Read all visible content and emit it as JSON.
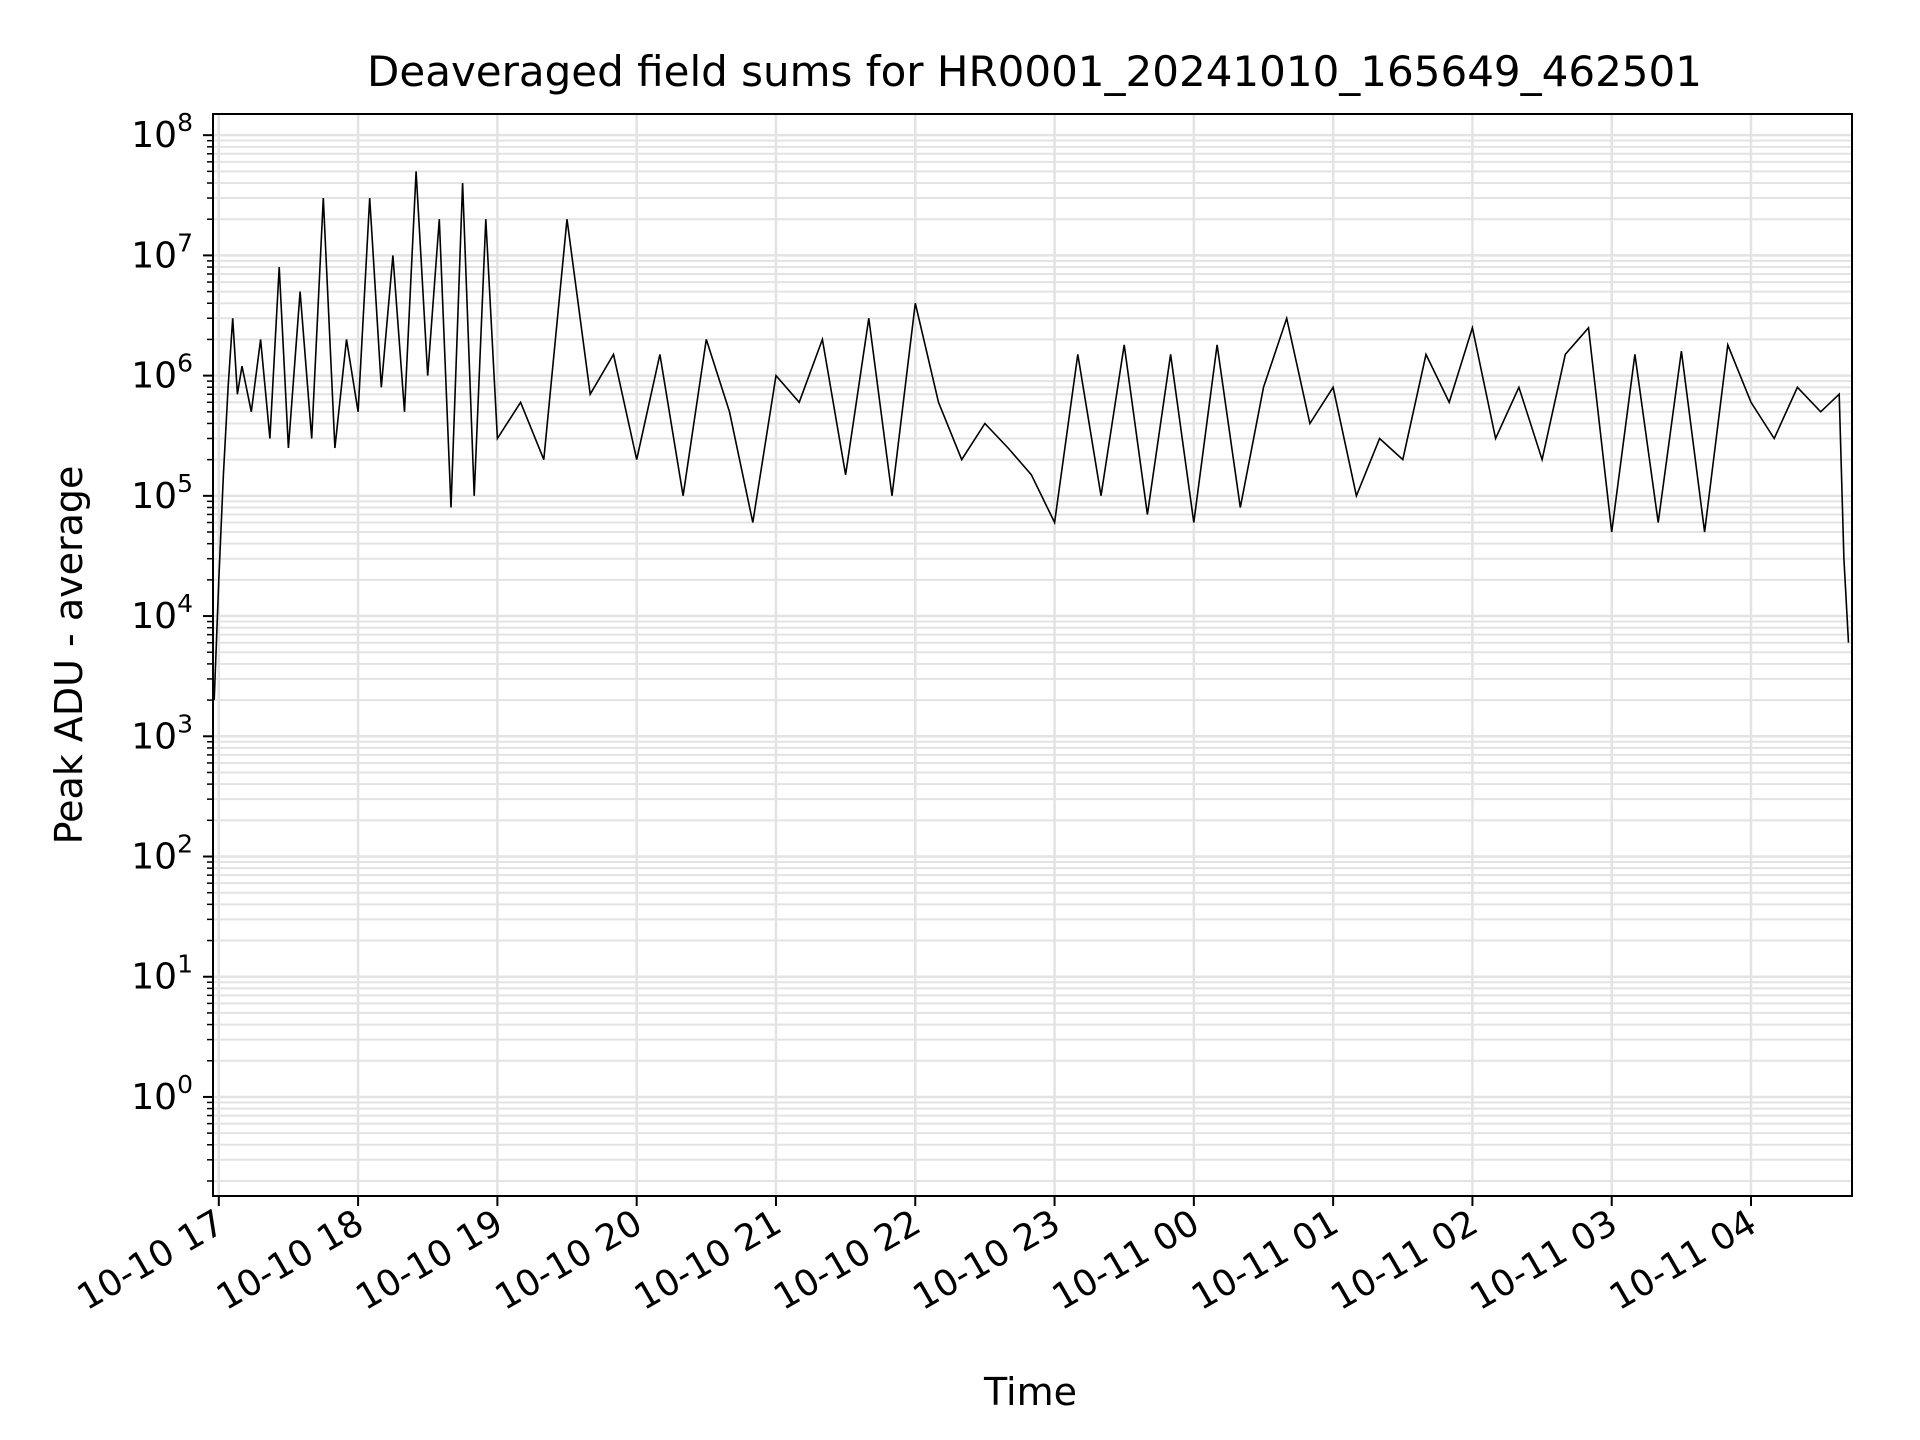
{
  "chart_data": {
    "type": "line",
    "title": "Deaveraged field sums for HR0001_20241010_165649_462501",
    "xlabel": "Time",
    "ylabel": "Peak ADU - average",
    "yscale": "log",
    "ylim": [
      0.15,
      150000000
    ],
    "xlim": [
      "2024-10-10 16:57:30",
      "2024-10-11 04:43:30"
    ],
    "x_tick_labels": [
      "10-10 17",
      "10-10 18",
      "10-10 19",
      "10-10 20",
      "10-10 21",
      "10-10 22",
      "10-10 23",
      "10-11 00",
      "10-11 01",
      "10-11 02",
      "10-11 03",
      "10-11 04"
    ],
    "x_tick_times": [
      "2024-10-10 17:00",
      "2024-10-10 18:00",
      "2024-10-10 19:00",
      "2024-10-10 20:00",
      "2024-10-10 21:00",
      "2024-10-10 22:00",
      "2024-10-10 23:00",
      "2024-10-11 00:00",
      "2024-10-11 01:00",
      "2024-10-11 02:00",
      "2024-10-11 03:00",
      "2024-10-11 04:00"
    ],
    "y_ticks": [
      {
        "value": 1,
        "base": "10",
        "exp": "0"
      },
      {
        "value": 10,
        "base": "10",
        "exp": "1"
      },
      {
        "value": 100,
        "base": "10",
        "exp": "2"
      },
      {
        "value": 1000,
        "base": "10",
        "exp": "3"
      },
      {
        "value": 10000,
        "base": "10",
        "exp": "4"
      },
      {
        "value": 100000,
        "base": "10",
        "exp": "5"
      },
      {
        "value": 1000000,
        "base": "10",
        "exp": "6"
      },
      {
        "value": 10000000,
        "base": "10",
        "exp": "7"
      },
      {
        "value": 100000000,
        "base": "10",
        "exp": "8"
      }
    ],
    "grid": true,
    "line_color": "#000000",
    "grid_color": "#e3e3e3",
    "series": [
      {
        "x": [
          "2024-10-10 16:58",
          "2024-10-10 17:00",
          "2024-10-10 17:02",
          "2024-10-10 17:04",
          "2024-10-10 17:06",
          "2024-10-10 17:08",
          "2024-10-10 17:10",
          "2024-10-10 17:14",
          "2024-10-10 17:18",
          "2024-10-10 17:22",
          "2024-10-10 17:26",
          "2024-10-10 17:30",
          "2024-10-10 17:35",
          "2024-10-10 17:40",
          "2024-10-10 17:45",
          "2024-10-10 17:50",
          "2024-10-10 17:55",
          "2024-10-10 18:00",
          "2024-10-10 18:05",
          "2024-10-10 18:10",
          "2024-10-10 18:15",
          "2024-10-10 18:20",
          "2024-10-10 18:25",
          "2024-10-10 18:30",
          "2024-10-10 18:35",
          "2024-10-10 18:40",
          "2024-10-10 18:45",
          "2024-10-10 18:50",
          "2024-10-10 18:55",
          "2024-10-10 19:00",
          "2024-10-10 19:10",
          "2024-10-10 19:20",
          "2024-10-10 19:30",
          "2024-10-10 19:40",
          "2024-10-10 19:50",
          "2024-10-10 20:00",
          "2024-10-10 20:10",
          "2024-10-10 20:20",
          "2024-10-10 20:30",
          "2024-10-10 20:40",
          "2024-10-10 20:50",
          "2024-10-10 21:00",
          "2024-10-10 21:10",
          "2024-10-10 21:20",
          "2024-10-10 21:30",
          "2024-10-10 21:40",
          "2024-10-10 21:50",
          "2024-10-10 22:00",
          "2024-10-10 22:10",
          "2024-10-10 22:20",
          "2024-10-10 22:30",
          "2024-10-10 22:40",
          "2024-10-10 22:50",
          "2024-10-10 23:00",
          "2024-10-10 23:10",
          "2024-10-10 23:20",
          "2024-10-10 23:30",
          "2024-10-10 23:40",
          "2024-10-10 23:50",
          "2024-10-11 00:00",
          "2024-10-11 00:10",
          "2024-10-11 00:20",
          "2024-10-11 00:30",
          "2024-10-11 00:40",
          "2024-10-11 00:50",
          "2024-10-11 01:00",
          "2024-10-11 01:10",
          "2024-10-11 01:20",
          "2024-10-11 01:30",
          "2024-10-11 01:40",
          "2024-10-11 01:50",
          "2024-10-11 02:00",
          "2024-10-11 02:10",
          "2024-10-11 02:20",
          "2024-10-11 02:30",
          "2024-10-11 02:40",
          "2024-10-11 02:50",
          "2024-10-11 03:00",
          "2024-10-11 03:10",
          "2024-10-11 03:20",
          "2024-10-11 03:30",
          "2024-10-11 03:40",
          "2024-10-11 03:50",
          "2024-10-11 04:00",
          "2024-10-11 04:10",
          "2024-10-11 04:20",
          "2024-10-11 04:30",
          "2024-10-11 04:38",
          "2024-10-11 04:40",
          "2024-10-11 04:42"
        ],
        "values": [
          2000,
          20000,
          150000,
          800000,
          3000000,
          700000,
          1200000,
          500000,
          2000000,
          300000,
          8000000,
          250000,
          5000000,
          300000,
          30000000,
          250000,
          2000000,
          500000,
          30000000,
          800000,
          10000000,
          500000,
          50000000,
          1000000,
          20000000,
          80000,
          40000000,
          100000,
          20000000,
          300000,
          600000,
          200000,
          20000000,
          700000,
          1500000,
          200000,
          1500000,
          100000,
          2000000,
          500000,
          60000,
          1000000,
          600000,
          2000000,
          150000,
          3000000,
          100000,
          4000000,
          600000,
          200000,
          400000,
          250000,
          150000,
          60000,
          1500000,
          100000,
          1800000,
          70000,
          1500000,
          60000,
          1800000,
          80000,
          800000,
          3000000,
          400000,
          800000,
          100000,
          300000,
          200000,
          1500000,
          600000,
          2500000,
          300000,
          800000,
          200000,
          1500000,
          2500000,
          50000,
          1500000,
          60000,
          1600000,
          50000,
          1800000,
          600000,
          300000,
          800000,
          500000,
          700000,
          30000,
          6000
        ]
      }
    ]
  }
}
